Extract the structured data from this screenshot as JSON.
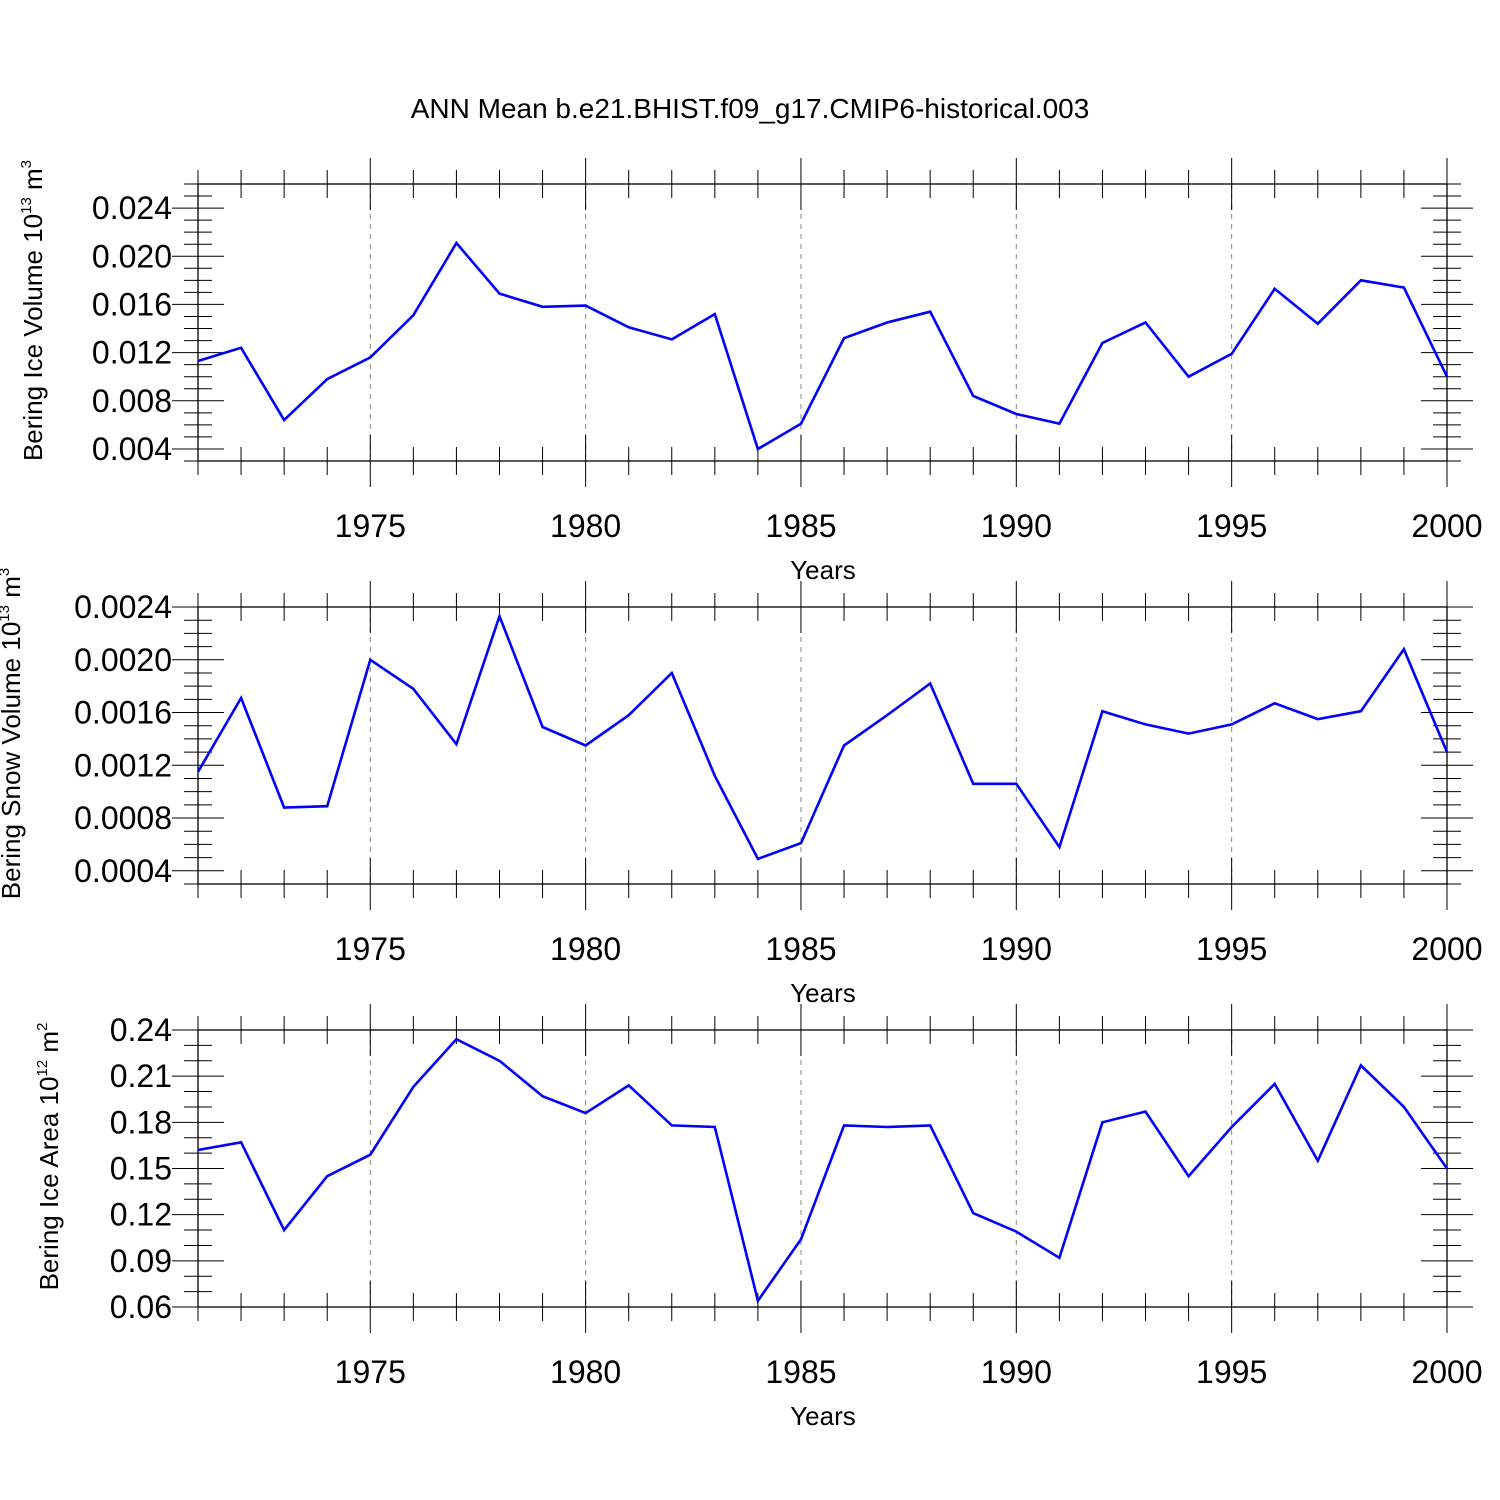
{
  "figure": {
    "title": "ANN Mean b.e21.BHIST.f09_g17.CMIP6-historical.003",
    "line_color": "#0000ff"
  },
  "chart_data": [
    {
      "type": "line",
      "title": "",
      "ylabel_main": "Bering Ice Volume 10",
      "ylabel_exp": "13",
      "ylabel_unit": " m",
      "ylabel_unit_exp": "3",
      "xlabel": "Years",
      "xlim": [
        1971,
        2000
      ],
      "ylim": [
        0.003,
        0.026
      ],
      "x_ticks": [
        1975,
        1980,
        1985,
        1990,
        1995,
        2000
      ],
      "x_tick_labels": [
        "1975",
        "1980",
        "1985",
        "1990",
        "1995",
        "2000"
      ],
      "y_ticks": [
        0.004,
        0.008,
        0.012,
        0.016,
        0.02,
        0.024
      ],
      "y_tick_labels": [
        "0.004",
        "0.008",
        "0.012",
        "0.016",
        "0.020",
        "0.024"
      ],
      "y_minor_step": 0.001,
      "grid": "vertical dashed at major x ticks",
      "x": [
        1971,
        1972,
        1973,
        1974,
        1975,
        1976,
        1977,
        1978,
        1979,
        1980,
        1981,
        1982,
        1983,
        1984,
        1985,
        1986,
        1987,
        1988,
        1989,
        1990,
        1991,
        1992,
        1993,
        1994,
        1995,
        1996,
        1997,
        1998,
        1999,
        2000
      ],
      "series": [
        {
          "name": "Bering Ice Volume",
          "values": [
            0.0113,
            0.0124,
            0.0064,
            0.0098,
            0.0116,
            0.0151,
            0.0211,
            0.0169,
            0.0158,
            0.0159,
            0.0141,
            0.0131,
            0.0152,
            0.004,
            0.0061,
            0.0132,
            0.0145,
            0.0154,
            0.0084,
            0.0069,
            0.0061,
            0.0128,
            0.0145,
            0.01,
            0.0119,
            0.0173,
            0.0144,
            0.018,
            0.0174,
            0.01
          ]
        }
      ]
    },
    {
      "type": "line",
      "title": "",
      "ylabel_main": "Bering Snow Volume 10",
      "ylabel_exp": "13",
      "ylabel_unit": " m",
      "ylabel_unit_exp": "3",
      "xlabel": "Years",
      "xlim": [
        1971,
        2000
      ],
      "ylim": [
        0.0003,
        0.0024
      ],
      "x_ticks": [
        1975,
        1980,
        1985,
        1990,
        1995,
        2000
      ],
      "x_tick_labels": [
        "1975",
        "1980",
        "1985",
        "1990",
        "1995",
        "2000"
      ],
      "y_ticks": [
        0.0004,
        0.0008,
        0.0012,
        0.0016,
        0.002,
        0.0024
      ],
      "y_tick_labels": [
        "0.0004",
        "0.0008",
        "0.0012",
        "0.0016",
        "0.0020",
        "0.0024"
      ],
      "y_minor_step": 0.0001,
      "grid": "vertical dashed at major x ticks",
      "x": [
        1971,
        1972,
        1973,
        1974,
        1975,
        1976,
        1977,
        1978,
        1979,
        1980,
        1981,
        1982,
        1983,
        1984,
        1985,
        1986,
        1987,
        1988,
        1989,
        1990,
        1991,
        1992,
        1993,
        1994,
        1995,
        1996,
        1997,
        1998,
        1999,
        2000
      ],
      "series": [
        {
          "name": "Bering Snow Volume",
          "values": [
            0.00115,
            0.00171,
            0.00088,
            0.00089,
            0.002,
            0.00178,
            0.00136,
            0.00233,
            0.00149,
            0.00135,
            0.00158,
            0.0019,
            0.00112,
            0.00049,
            0.00061,
            0.00135,
            0.00158,
            0.00182,
            0.00106,
            0.00106,
            0.00058,
            0.00161,
            0.00151,
            0.00144,
            0.00151,
            0.00167,
            0.00155,
            0.00161,
            0.00208,
            0.0013
          ]
        }
      ]
    },
    {
      "type": "line",
      "title": "",
      "ylabel_main": "Bering Ice Area 10",
      "ylabel_exp": "12",
      "ylabel_unit": " m",
      "ylabel_unit_exp": "2",
      "xlabel": "Years",
      "xlim": [
        1971,
        2000
      ],
      "ylim": [
        0.06,
        0.24
      ],
      "x_ticks": [
        1975,
        1980,
        1985,
        1990,
        1995,
        2000
      ],
      "x_tick_labels": [
        "1975",
        "1980",
        "1985",
        "1990",
        "1995",
        "2000"
      ],
      "y_ticks": [
        0.06,
        0.09,
        0.12,
        0.15,
        0.18,
        0.21,
        0.24
      ],
      "y_tick_labels": [
        "0.06",
        "0.09",
        "0.12",
        "0.15",
        "0.18",
        "0.21",
        "0.24"
      ],
      "y_minor_step": 0.01,
      "grid": "vertical dashed at major x ticks",
      "x": [
        1971,
        1972,
        1973,
        1974,
        1975,
        1976,
        1977,
        1978,
        1979,
        1980,
        1981,
        1982,
        1983,
        1984,
        1985,
        1986,
        1987,
        1988,
        1989,
        1990,
        1991,
        1992,
        1993,
        1994,
        1995,
        1996,
        1997,
        1998,
        1999,
        2000
      ],
      "series": [
        {
          "name": "Bering Ice Area",
          "values": [
            0.162,
            0.167,
            0.11,
            0.145,
            0.159,
            0.203,
            0.234,
            0.22,
            0.197,
            0.186,
            0.204,
            0.178,
            0.177,
            0.064,
            0.104,
            0.178,
            0.177,
            0.178,
            0.121,
            0.109,
            0.092,
            0.18,
            0.187,
            0.145,
            0.177,
            0.205,
            0.155,
            0.217,
            0.19,
            0.15
          ]
        }
      ]
    }
  ]
}
